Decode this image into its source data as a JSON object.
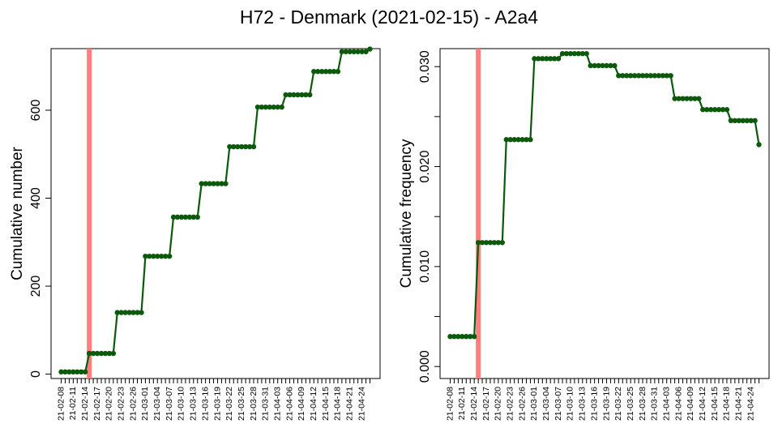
{
  "title": "H72 - Denmark (2021-02-15) - A2a4",
  "colors": {
    "line": "#0b5a0b",
    "marker": "#0b5a0b",
    "reference_line": "#ff7f7f",
    "axis": "#000000"
  },
  "chart_data": [
    {
      "type": "line",
      "ylabel": "Cumulative number",
      "xlabel": "",
      "ylim": [
        -10,
        740
      ],
      "yticks": [
        0,
        200,
        400,
        600
      ],
      "ytick_labels": [
        "0",
        "200",
        "400",
        "600"
      ],
      "reference_date": "21-02-15",
      "x_tick_labels": [
        "21-02-08",
        "21-02-11",
        "21-02-14",
        "21-02-17",
        "21-02-20",
        "21-02-23",
        "21-02-26",
        "21-03-01",
        "21-03-04",
        "21-03-07",
        "21-03-10",
        "21-03-13",
        "21-03-16",
        "21-03-19",
        "21-03-22",
        "21-03-25",
        "21-03-28",
        "21-03-31",
        "21-04-03",
        "21-04-06",
        "21-04-09",
        "21-04-12",
        "21-04-15",
        "21-04-18",
        "21-04-21",
        "21-04-24"
      ],
      "series": [
        {
          "x": [
            "21-02-08",
            "21-02-09",
            "21-02-10",
            "21-02-11",
            "21-02-12",
            "21-02-13",
            "21-02-14",
            "21-02-15",
            "21-02-16",
            "21-02-17",
            "21-02-18",
            "21-02-19",
            "21-02-20",
            "21-02-21",
            "21-02-22",
            "21-02-23",
            "21-02-24",
            "21-02-25",
            "21-02-26",
            "21-02-27",
            "21-02-28",
            "21-03-01",
            "21-03-02",
            "21-03-03",
            "21-03-04",
            "21-03-05",
            "21-03-06",
            "21-03-07",
            "21-03-08",
            "21-03-09",
            "21-03-10",
            "21-03-11",
            "21-03-12",
            "21-03-13",
            "21-03-14",
            "21-03-15",
            "21-03-16",
            "21-03-17",
            "21-03-18",
            "21-03-19",
            "21-03-20",
            "21-03-21",
            "21-03-22",
            "21-03-23",
            "21-03-24",
            "21-03-25",
            "21-03-26",
            "21-03-27",
            "21-03-28",
            "21-03-29",
            "21-03-30",
            "21-03-31",
            "21-04-01",
            "21-04-02",
            "21-04-03",
            "21-04-04",
            "21-04-05",
            "21-04-06",
            "21-04-07",
            "21-04-08",
            "21-04-09",
            "21-04-10",
            "21-04-11",
            "21-04-12",
            "21-04-13",
            "21-04-14",
            "21-04-15",
            "21-04-16",
            "21-04-17",
            "21-04-18",
            "21-04-19",
            "21-04-20",
            "21-04-21",
            "21-04-22",
            "21-04-23",
            "21-04-24",
            "21-04-25",
            "21-04-26"
          ],
          "y": [
            5,
            5,
            5,
            5,
            5,
            5,
            5,
            47,
            47,
            47,
            47,
            47,
            47,
            47,
            140,
            140,
            140,
            140,
            140,
            140,
            140,
            268,
            268,
            268,
            268,
            268,
            268,
            268,
            357,
            357,
            357,
            357,
            357,
            357,
            357,
            433,
            433,
            433,
            433,
            433,
            433,
            433,
            517,
            517,
            517,
            517,
            517,
            517,
            517,
            607,
            607,
            607,
            607,
            607,
            607,
            607,
            635,
            635,
            635,
            635,
            635,
            635,
            635,
            688,
            688,
            688,
            688,
            688,
            688,
            688,
            733,
            733,
            733,
            733,
            733,
            733,
            733,
            739
          ]
        }
      ]
    },
    {
      "type": "line",
      "ylabel": "Cumulative frequency",
      "xlabel": "",
      "ylim": [
        -0.0012,
        0.0318
      ],
      "yticks": [
        0.0,
        0.005,
        0.01,
        0.015,
        0.02,
        0.025,
        0.03
      ],
      "ytick_labels": [
        "0.000",
        "",
        "0.010",
        "",
        "0.020",
        "",
        "0.030"
      ],
      "reference_date": "21-02-15",
      "x_tick_labels": [
        "21-02-08",
        "21-02-11",
        "21-02-14",
        "21-02-17",
        "21-02-20",
        "21-02-23",
        "21-02-26",
        "21-03-01",
        "21-03-04",
        "21-03-07",
        "21-03-10",
        "21-03-13",
        "21-03-16",
        "21-03-19",
        "21-03-22",
        "21-03-25",
        "21-03-28",
        "21-03-31",
        "21-04-03",
        "21-04-06",
        "21-04-09",
        "21-04-12",
        "21-04-15",
        "21-04-18",
        "21-04-21",
        "21-04-24"
      ],
      "series": [
        {
          "x": [
            "21-02-08",
            "21-02-09",
            "21-02-10",
            "21-02-11",
            "21-02-12",
            "21-02-13",
            "21-02-14",
            "21-02-15",
            "21-02-16",
            "21-02-17",
            "21-02-18",
            "21-02-19",
            "21-02-20",
            "21-02-21",
            "21-02-22",
            "21-02-23",
            "21-02-24",
            "21-02-25",
            "21-02-26",
            "21-02-27",
            "21-02-28",
            "21-03-01",
            "21-03-02",
            "21-03-03",
            "21-03-04",
            "21-03-05",
            "21-03-06",
            "21-03-07",
            "21-03-08",
            "21-03-09",
            "21-03-10",
            "21-03-11",
            "21-03-12",
            "21-03-13",
            "21-03-14",
            "21-03-15",
            "21-03-16",
            "21-03-17",
            "21-03-18",
            "21-03-19",
            "21-03-20",
            "21-03-21",
            "21-03-22",
            "21-03-23",
            "21-03-24",
            "21-03-25",
            "21-03-26",
            "21-03-27",
            "21-03-28",
            "21-03-29",
            "21-03-30",
            "21-03-31",
            "21-04-01",
            "21-04-02",
            "21-04-03",
            "21-04-04",
            "21-04-05",
            "21-04-06",
            "21-04-07",
            "21-04-08",
            "21-04-09",
            "21-04-10",
            "21-04-11",
            "21-04-12",
            "21-04-13",
            "21-04-14",
            "21-04-15",
            "21-04-16",
            "21-04-17",
            "21-04-18",
            "21-04-19",
            "21-04-20",
            "21-04-21",
            "21-04-22",
            "21-04-23",
            "21-04-24",
            "21-04-25",
            "21-04-26"
          ],
          "y": [
            0.003,
            0.003,
            0.003,
            0.003,
            0.003,
            0.003,
            0.003,
            0.0124,
            0.0124,
            0.0124,
            0.0124,
            0.0124,
            0.0124,
            0.0124,
            0.0227,
            0.0227,
            0.0227,
            0.0227,
            0.0227,
            0.0227,
            0.0227,
            0.0308,
            0.0308,
            0.0308,
            0.0308,
            0.0308,
            0.0308,
            0.0308,
            0.0313,
            0.0313,
            0.0313,
            0.0313,
            0.0313,
            0.0313,
            0.0313,
            0.0301,
            0.0301,
            0.0301,
            0.0301,
            0.0301,
            0.0301,
            0.0301,
            0.0291,
            0.0291,
            0.0291,
            0.0291,
            0.0291,
            0.0291,
            0.0291,
            0.0291,
            0.0291,
            0.0291,
            0.0291,
            0.0291,
            0.0291,
            0.0291,
            0.0268,
            0.0268,
            0.0268,
            0.0268,
            0.0268,
            0.0268,
            0.0268,
            0.0257,
            0.0257,
            0.0257,
            0.0257,
            0.0257,
            0.0257,
            0.0257,
            0.0246,
            0.0246,
            0.0246,
            0.0246,
            0.0246,
            0.0246,
            0.0246,
            0.0222
          ]
        }
      ]
    }
  ]
}
